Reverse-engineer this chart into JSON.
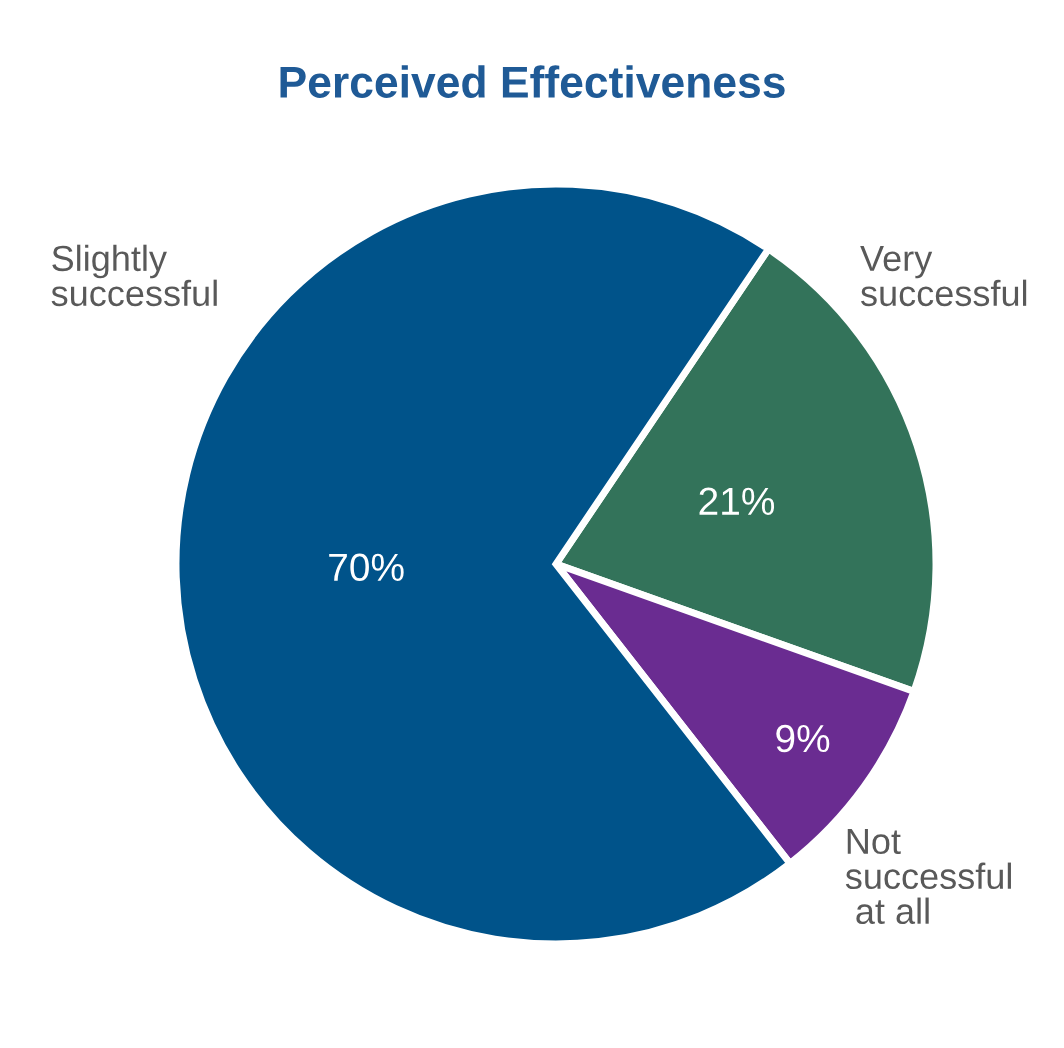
{
  "chart_data": {
    "type": "pie",
    "title": "Perceived Effectiveness",
    "categories": [
      "Very\nsuccessful",
      "Not\nsuccessful\n at all",
      "Slightly\nsuccessful"
    ],
    "values": [
      21,
      9,
      70
    ],
    "colors": [
      "#33735a",
      "#6a2c91",
      "#00538a"
    ],
    "value_labels": [
      "21%",
      "9%",
      "70%"
    ]
  }
}
